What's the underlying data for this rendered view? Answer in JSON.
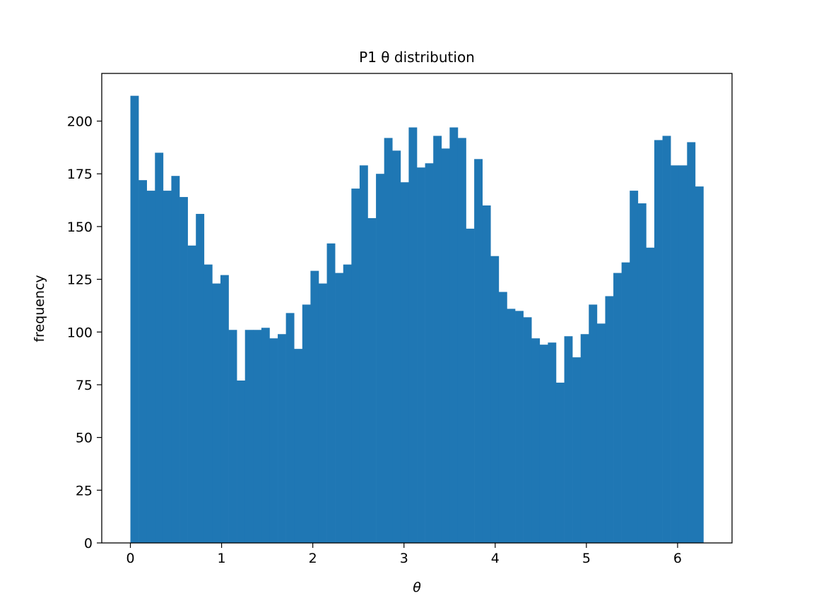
{
  "chart_data": {
    "type": "bar",
    "subtype": "histogram",
    "title": "P1 θ distribution",
    "xlabel": "θ",
    "ylabel": "frequency",
    "bin_start": 0,
    "bin_end": 6.2832,
    "values": [
      212,
      172,
      167,
      185,
      167,
      174,
      164,
      141,
      156,
      132,
      123,
      127,
      101,
      77,
      101,
      101,
      102,
      97,
      99,
      109,
      92,
      113,
      129,
      123,
      142,
      128,
      132,
      168,
      179,
      154,
      175,
      192,
      186,
      171,
      197,
      178,
      180,
      193,
      187,
      197,
      192,
      149,
      182,
      160,
      136,
      119,
      111,
      110,
      107,
      97,
      94,
      95,
      76,
      98,
      88,
      99,
      113,
      104,
      117,
      128,
      133,
      167,
      161,
      140,
      191,
      193,
      179,
      179,
      190,
      169
    ],
    "bar_color": "#1f77b4",
    "xlim": [
      -0.314,
      6.597
    ],
    "ylim": [
      0,
      222.6
    ],
    "xticks": [
      0,
      1,
      2,
      3,
      4,
      5,
      6
    ],
    "yticks": [
      0,
      25,
      50,
      75,
      100,
      125,
      150,
      175,
      200
    ],
    "xtick_labels": [
      "0",
      "1",
      "2",
      "3",
      "4",
      "5",
      "6"
    ],
    "ytick_labels": [
      "0",
      "25",
      "50",
      "75",
      "100",
      "125",
      "150",
      "175",
      "200"
    ],
    "grid": false,
    "legend": "none"
  }
}
